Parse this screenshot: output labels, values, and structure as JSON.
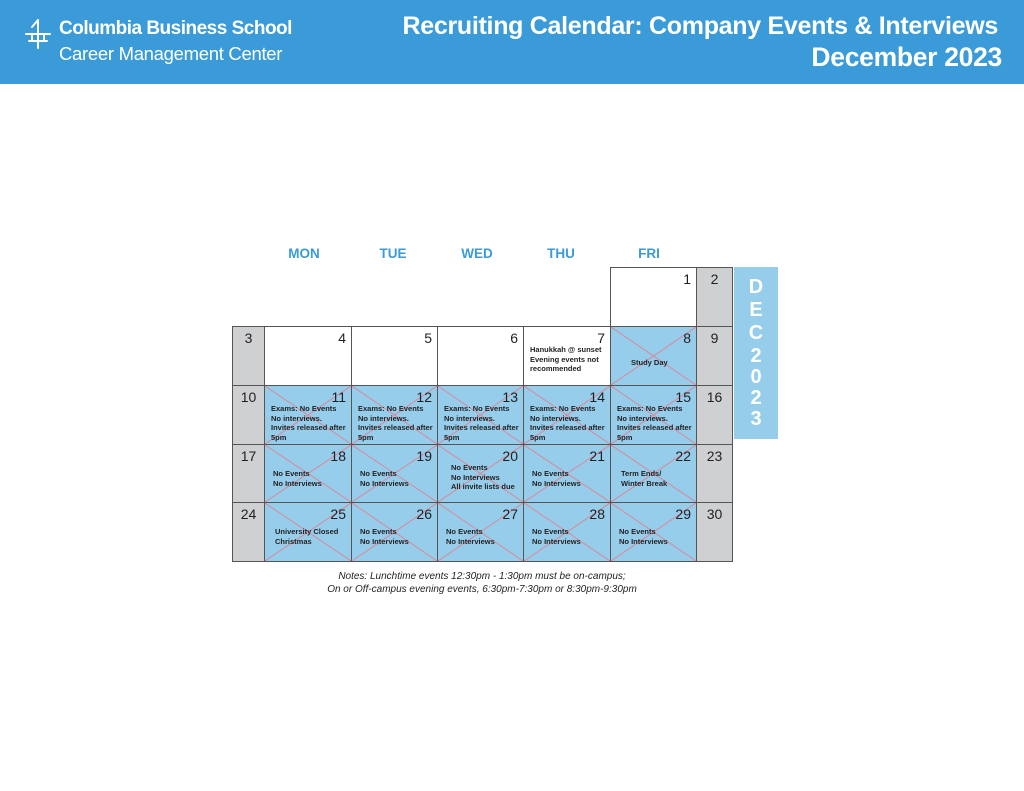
{
  "header": {
    "logo_name": "Columbia Business School",
    "logo_sub": "Career Management Center",
    "title": "Recruiting Calendar: Company Events & Interviews",
    "month_title": "December 2023",
    "background_color": "#3a9bd8",
    "logo_icon": "crown-icon"
  },
  "calendar": {
    "weekdays": [
      "MON",
      "TUE",
      "WED",
      "THU",
      "FRI"
    ],
    "side_tab": [
      "D",
      "E",
      "C",
      "2",
      "0",
      "2",
      "3"
    ],
    "weeks": [
      {
        "days": [
          {
            "num": "",
            "note": "",
            "kind": "empty"
          },
          {
            "num": "",
            "note": "",
            "kind": "empty"
          },
          {
            "num": "",
            "note": "",
            "kind": "empty"
          },
          {
            "num": "",
            "note": "",
            "kind": "empty"
          },
          {
            "num": "1",
            "note": "",
            "kind": "plain"
          },
          {
            "num": "2",
            "note": "",
            "kind": "weekend"
          }
        ]
      },
      {
        "days": [
          {
            "num": "3",
            "note": "",
            "kind": "weekend"
          },
          {
            "num": "4",
            "note": "",
            "kind": "plain"
          },
          {
            "num": "5",
            "note": "",
            "kind": "plain"
          },
          {
            "num": "6",
            "note": "",
            "kind": "plain"
          },
          {
            "num": "7",
            "note": "Hanukkah @ sunset\nEvening events not recommended",
            "kind": "plain"
          },
          {
            "num": "8",
            "note": "Study Day",
            "kind": "blocked"
          },
          {
            "num": "9",
            "note": "",
            "kind": "weekend"
          }
        ]
      },
      {
        "days": [
          {
            "num": "10",
            "note": "",
            "kind": "weekend"
          },
          {
            "num": "11",
            "note": "Exams: No Events\nNo interviews.\nInvites released after 5pm",
            "kind": "blocked"
          },
          {
            "num": "12",
            "note": "Exams: No Events\nNo interviews.\nInvites released after 5pm",
            "kind": "blocked"
          },
          {
            "num": "13",
            "note": "Exams: No Events\nNo interviews.\nInvites released after 5pm",
            "kind": "blocked"
          },
          {
            "num": "14",
            "note": "Exams: No Events\nNo interviews.\nInvites released after 5pm",
            "kind": "blocked"
          },
          {
            "num": "15",
            "note": "Exams: No Events\nNo interviews.\nInvites released after 5pm",
            "kind": "blocked"
          },
          {
            "num": "16",
            "note": "",
            "kind": "weekend"
          }
        ]
      },
      {
        "days": [
          {
            "num": "17",
            "note": "",
            "kind": "weekend"
          },
          {
            "num": "18",
            "note": "No Events\nNo Interviews",
            "kind": "blocked"
          },
          {
            "num": "19",
            "note": "No Events\nNo Interviews",
            "kind": "blocked"
          },
          {
            "num": "20",
            "note": "No Events\nNo Interviews\nAll invite lists due",
            "kind": "blocked"
          },
          {
            "num": "21",
            "note": "No Events\nNo Interviews",
            "kind": "blocked"
          },
          {
            "num": "22",
            "note": "Term Ends/\nWinter Break",
            "kind": "blocked"
          },
          {
            "num": "23",
            "note": "",
            "kind": "weekend"
          }
        ]
      },
      {
        "days": [
          {
            "num": "24",
            "note": "",
            "kind": "weekend"
          },
          {
            "num": "25",
            "note": "University Closed\nChristmas",
            "kind": "blocked"
          },
          {
            "num": "26",
            "note": "No Events\nNo Interviews",
            "kind": "blocked"
          },
          {
            "num": "27",
            "note": "No Events\nNo Interviews",
            "kind": "blocked"
          },
          {
            "num": "28",
            "note": "No Events\nNo Interviews",
            "kind": "blocked"
          },
          {
            "num": "29",
            "note": "No Events\nNo Interviews",
            "kind": "blocked"
          },
          {
            "num": "30",
            "note": "",
            "kind": "weekend"
          }
        ]
      }
    ]
  },
  "notes": {
    "line1": "Notes: Lunchtime events 12:30pm - 1:30pm must be on-campus;",
    "line2": "On or Off-campus evening events, 6:30pm-7:30pm or 8:30pm-9:30pm"
  },
  "colors": {
    "accent": "#3a9bd8",
    "blocked_fill": "#95cdea",
    "weekend_fill": "#cfd0d2",
    "x_line": "#d98a9a"
  }
}
